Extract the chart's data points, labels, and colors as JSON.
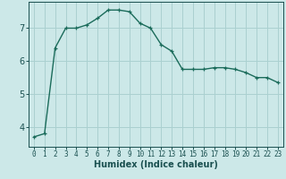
{
  "x": [
    0,
    1,
    2,
    3,
    4,
    5,
    6,
    7,
    8,
    9,
    10,
    11,
    12,
    13,
    14,
    15,
    16,
    17,
    18,
    19,
    20,
    21,
    22,
    23
  ],
  "y": [
    3.7,
    3.8,
    6.4,
    7.0,
    7.0,
    7.1,
    7.3,
    7.55,
    7.55,
    7.5,
    7.15,
    7.0,
    6.5,
    6.3,
    5.75,
    5.75,
    5.75,
    5.8,
    5.8,
    5.75,
    5.65,
    5.5,
    5.5,
    5.35
  ],
  "line_color": "#1a6b5a",
  "bg_color": "#cce8e8",
  "grid_color": "#aad0d0",
  "xlabel": "Humidex (Indice chaleur)",
  "ylabel_ticks": [
    4,
    5,
    6,
    7
  ],
  "xlim": [
    -0.5,
    23.5
  ],
  "ylim": [
    3.4,
    7.8
  ],
  "xtick_labels": [
    "0",
    "1",
    "2",
    "3",
    "4",
    "5",
    "6",
    "7",
    "8",
    "9",
    "10",
    "11",
    "12",
    "13",
    "14",
    "15",
    "16",
    "17",
    "18",
    "19",
    "20",
    "21",
    "22",
    "23"
  ],
  "font_color": "#1a5050",
  "tick_fontsize": 5.5,
  "label_fontsize": 7.0
}
